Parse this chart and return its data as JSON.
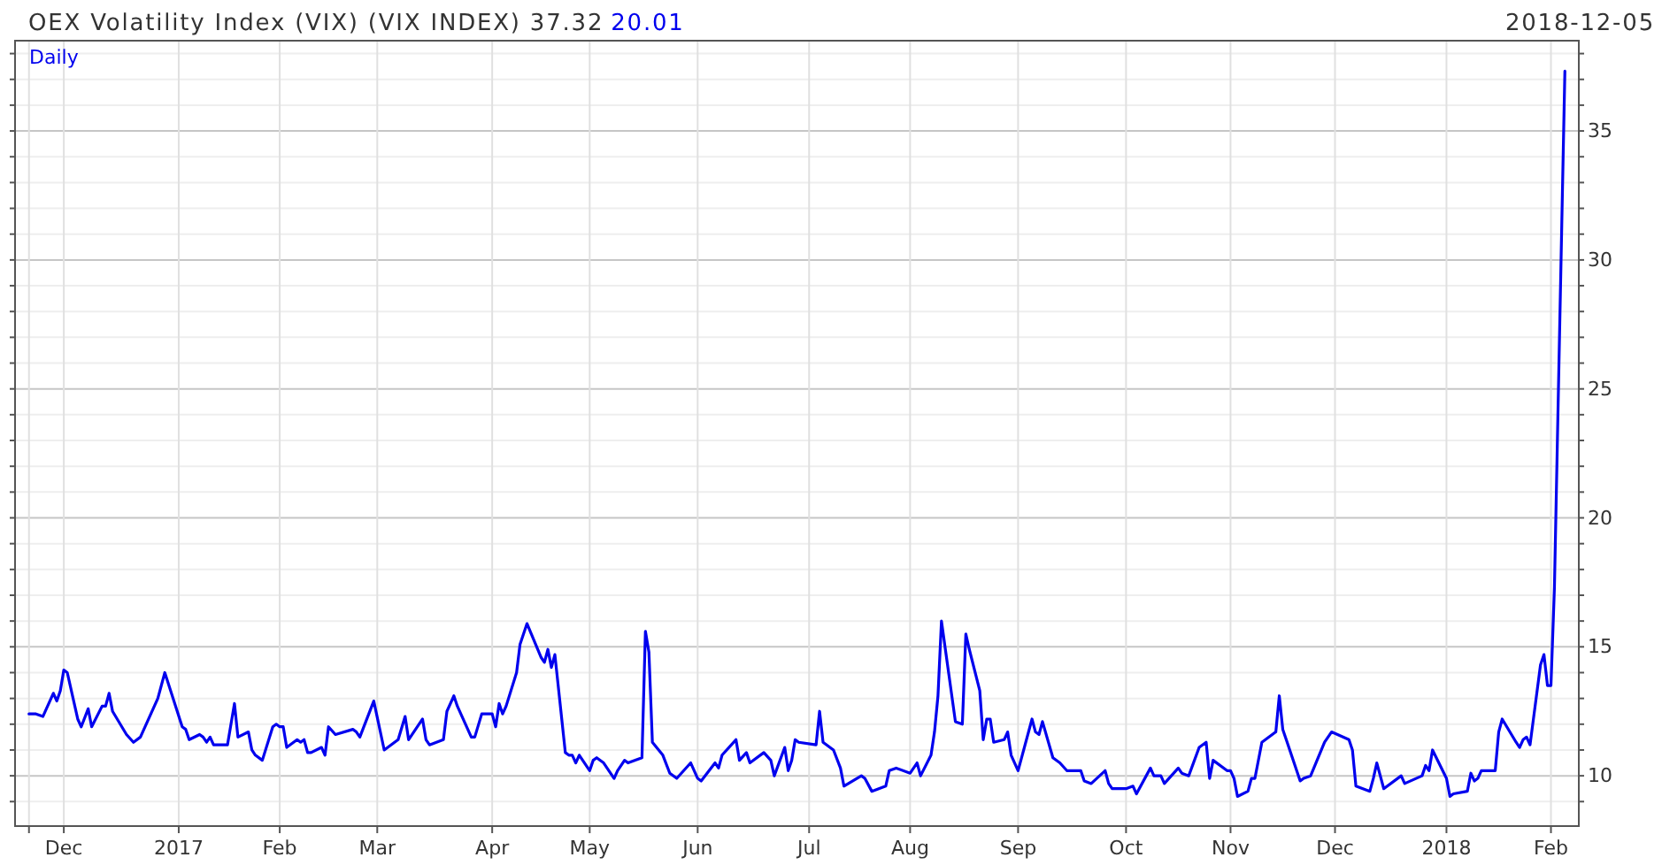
{
  "chart_data": {
    "type": "line",
    "title": "OEX Volatility Index (VIX) (VIX INDEX) 37.32",
    "subtitle": "20.01",
    "annotations": [
      "2018-12-05"
    ],
    "xlim": [
      "2016-11-17",
      "2018-02-09"
    ],
    "xticks": [
      {
        "value": "2016-11-21",
        "label": null
      },
      {
        "value": "2016-12-01",
        "label": "Dec"
      },
      {
        "value": "2017-01-03",
        "label": "2017"
      },
      {
        "value": "2017-02-01",
        "label": "Feb"
      },
      {
        "value": "2017-03-01",
        "label": "Mar"
      },
      {
        "value": "2017-04-03",
        "label": "Apr"
      },
      {
        "value": "2017-05-01",
        "label": "May"
      },
      {
        "value": "2017-06-01",
        "label": "Jun"
      },
      {
        "value": "2017-07-03",
        "label": "Jul"
      },
      {
        "value": "2017-08-01",
        "label": "Aug"
      },
      {
        "value": "2017-09-01",
        "label": "Sep"
      },
      {
        "value": "2017-10-02",
        "label": "Oct"
      },
      {
        "value": "2017-11-01",
        "label": "Nov"
      },
      {
        "value": "2017-12-01",
        "label": "Dec"
      },
      {
        "value": "2018-01-02",
        "label": "2018"
      },
      {
        "value": "2018-02-01",
        "label": "Feb"
      }
    ],
    "ylim": [
      8.05,
      38.5
    ],
    "yticks": [
      {
        "value": 9,
        "label": null
      },
      10,
      {
        "value": 11,
        "label": null
      },
      {
        "value": 12,
        "label": null
      },
      {
        "value": 13,
        "label": null
      },
      {
        "value": 14,
        "label": null
      },
      15,
      {
        "value": 16,
        "label": null
      },
      {
        "value": 17,
        "label": null
      },
      {
        "value": 18,
        "label": null
      },
      {
        "value": 19,
        "label": null
      },
      20,
      {
        "value": 21,
        "label": null
      },
      {
        "value": 22,
        "label": null
      },
      {
        "value": 23,
        "label": null
      },
      {
        "value": 24,
        "label": null
      },
      25,
      {
        "value": 26,
        "label": null
      },
      {
        "value": 27,
        "label": null
      },
      {
        "value": 28,
        "label": null
      },
      {
        "value": 29,
        "label": null
      },
      30,
      {
        "value": 31,
        "label": null
      },
      {
        "value": 32,
        "label": null
      },
      {
        "value": 33,
        "label": null
      },
      {
        "value": 34,
        "label": null
      },
      35,
      {
        "value": 36,
        "label": null
      },
      {
        "value": 37,
        "label": null
      },
      {
        "value": 38,
        "label": null
      }
    ],
    "grid": true,
    "legend": "top left",
    "series": [
      {
        "name": "Daily",
        "color": "#0000ee",
        "x": [
          "2016-11-21",
          "2016-11-23",
          "2016-11-25",
          "2016-11-28",
          "2016-11-29",
          "2016-11-30",
          "2016-12-01",
          "2016-12-02",
          "2016-12-05",
          "2016-12-06",
          "2016-12-08",
          "2016-12-09",
          "2016-12-12",
          "2016-12-13",
          "2016-12-14",
          "2016-12-15",
          "2016-12-19",
          "2016-12-21",
          "2016-12-23",
          "2016-12-28",
          "2016-12-30",
          "2017-01-04",
          "2017-01-05",
          "2017-01-06",
          "2017-01-09",
          "2017-01-10",
          "2017-01-11",
          "2017-01-12",
          "2017-01-13",
          "2017-01-17",
          "2017-01-18",
          "2017-01-19",
          "2017-01-20",
          "2017-01-23",
          "2017-01-24",
          "2017-01-25",
          "2017-01-27",
          "2017-01-30",
          "2017-01-31",
          "2017-02-01",
          "2017-02-02",
          "2017-02-03",
          "2017-02-06",
          "2017-02-07",
          "2017-02-08",
          "2017-02-09",
          "2017-02-10",
          "2017-02-13",
          "2017-02-14",
          "2017-02-15",
          "2017-02-17",
          "2017-02-22",
          "2017-02-23",
          "2017-02-24",
          "2017-02-28",
          "2017-03-03",
          "2017-03-07",
          "2017-03-09",
          "2017-03-10",
          "2017-03-14",
          "2017-03-15",
          "2017-03-16",
          "2017-03-20",
          "2017-03-21",
          "2017-03-23",
          "2017-03-24",
          "2017-03-28",
          "2017-03-29",
          "2017-03-31",
          "2017-04-03",
          "2017-04-04",
          "2017-04-05",
          "2017-04-06",
          "2017-04-07",
          "2017-04-10",
          "2017-04-11",
          "2017-04-13",
          "2017-04-17",
          "2017-04-18",
          "2017-04-19",
          "2017-04-20",
          "2017-04-21",
          "2017-04-24",
          "2017-04-25",
          "2017-04-26",
          "2017-04-27",
          "2017-04-28",
          "2017-05-01",
          "2017-05-02",
          "2017-05-03",
          "2017-05-05",
          "2017-05-08",
          "2017-05-09",
          "2017-05-11",
          "2017-05-12",
          "2017-05-16",
          "2017-05-17",
          "2017-05-18",
          "2017-05-19",
          "2017-05-22",
          "2017-05-24",
          "2017-05-26",
          "2017-05-30",
          "2017-06-01",
          "2017-06-02",
          "2017-06-06",
          "2017-06-07",
          "2017-06-08",
          "2017-06-12",
          "2017-06-13",
          "2017-06-15",
          "2017-06-16",
          "2017-06-20",
          "2017-06-22",
          "2017-06-23",
          "2017-06-26",
          "2017-06-27",
          "2017-06-28",
          "2017-06-29",
          "2017-06-30",
          "2017-07-05",
          "2017-07-06",
          "2017-07-07",
          "2017-07-10",
          "2017-07-12",
          "2017-07-13",
          "2017-07-18",
          "2017-07-19",
          "2017-07-21",
          "2017-07-25",
          "2017-07-26",
          "2017-07-28",
          "2017-08-01",
          "2017-08-03",
          "2017-08-04",
          "2017-08-07",
          "2017-08-08",
          "2017-08-09",
          "2017-08-10",
          "2017-08-14",
          "2017-08-16",
          "2017-08-17",
          "2017-08-18",
          "2017-08-21",
          "2017-08-22",
          "2017-08-23",
          "2017-08-24",
          "2017-08-25",
          "2017-08-28",
          "2017-08-29",
          "2017-08-30",
          "2017-09-01",
          "2017-09-05",
          "2017-09-06",
          "2017-09-07",
          "2017-09-08",
          "2017-09-11",
          "2017-09-13",
          "2017-09-15",
          "2017-09-19",
          "2017-09-20",
          "2017-09-22",
          "2017-09-26",
          "2017-09-27",
          "2017-09-28",
          "2017-10-02",
          "2017-10-04",
          "2017-10-05",
          "2017-10-09",
          "2017-10-10",
          "2017-10-12",
          "2017-10-13",
          "2017-10-17",
          "2017-10-18",
          "2017-10-20",
          "2017-10-23",
          "2017-10-25",
          "2017-10-26",
          "2017-10-27",
          "2017-10-31",
          "2017-11-01",
          "2017-11-02",
          "2017-11-03",
          "2017-11-06",
          "2017-11-07",
          "2017-11-08",
          "2017-11-10",
          "2017-11-14",
          "2017-11-15",
          "2017-11-16",
          "2017-11-17",
          "2017-11-21",
          "2017-11-22",
          "2017-11-24",
          "2017-11-28",
          "2017-11-30",
          "2017-12-05",
          "2017-12-06",
          "2017-12-07",
          "2017-12-11",
          "2017-12-12",
          "2017-12-13",
          "2017-12-15",
          "2017-12-20",
          "2017-12-21",
          "2017-12-26",
          "2017-12-27",
          "2017-12-28",
          "2017-12-29",
          "2018-01-02",
          "2018-01-03",
          "2018-01-04",
          "2018-01-08",
          "2018-01-09",
          "2018-01-10",
          "2018-01-11",
          "2018-01-12",
          "2018-01-16",
          "2018-01-17",
          "2018-01-18",
          "2018-01-22",
          "2018-01-23",
          "2018-01-24",
          "2018-01-25",
          "2018-01-26",
          "2018-01-29",
          "2018-01-30",
          "2018-01-31",
          "2018-02-01",
          "2018-02-02",
          "2018-02-05"
        ],
        "values": [
          12.4,
          12.4,
          12.3,
          13.2,
          12.9,
          13.3,
          14.1,
          14.0,
          12.2,
          11.9,
          12.6,
          11.9,
          12.7,
          12.7,
          13.2,
          12.5,
          11.6,
          11.3,
          11.5,
          13.0,
          14.0,
          11.9,
          11.8,
          11.4,
          11.6,
          11.5,
          11.3,
          11.5,
          11.2,
          11.2,
          12.0,
          12.8,
          11.5,
          11.7,
          11.0,
          10.8,
          10.6,
          11.9,
          12.0,
          11.9,
          11.9,
          11.1,
          11.4,
          11.3,
          11.4,
          10.9,
          10.9,
          11.1,
          10.8,
          11.9,
          11.6,
          11.8,
          11.7,
          11.5,
          12.9,
          11.0,
          11.4,
          12.3,
          11.4,
          12.2,
          11.4,
          11.2,
          11.4,
          12.5,
          13.1,
          12.7,
          11.5,
          11.5,
          12.4,
          12.4,
          11.9,
          12.8,
          12.4,
          12.7,
          14.0,
          15.1,
          15.9,
          14.6,
          14.4,
          14.9,
          14.2,
          14.7,
          10.9,
          10.8,
          10.8,
          10.5,
          10.8,
          10.2,
          10.6,
          10.7,
          10.5,
          9.9,
          10.2,
          10.6,
          10.5,
          10.7,
          15.6,
          14.8,
          11.3,
          10.8,
          10.1,
          9.9,
          10.5,
          9.9,
          9.8,
          10.5,
          10.3,
          10.8,
          11.4,
          10.6,
          10.9,
          10.5,
          10.9,
          10.6,
          10.0,
          11.1,
          10.2,
          10.6,
          11.4,
          11.3,
          11.2,
          12.5,
          11.3,
          11.0,
          10.3,
          9.6,
          10.0,
          9.9,
          9.4,
          9.6,
          10.2,
          10.3,
          10.1,
          10.5,
          10.0,
          10.8,
          11.7,
          13.1,
          16.0,
          12.1,
          12.0,
          15.5,
          14.9,
          13.3,
          11.4,
          12.2,
          12.2,
          11.3,
          11.4,
          11.7,
          10.8,
          10.2,
          12.2,
          11.7,
          11.6,
          12.1,
          10.7,
          10.5,
          10.2,
          10.2,
          9.8,
          9.7,
          10.2,
          9.7,
          9.5,
          9.5,
          9.6,
          9.3,
          10.3,
          10.0,
          10.0,
          9.7,
          10.3,
          10.1,
          10.0,
          11.1,
          11.3,
          9.9,
          10.6,
          10.2,
          10.2,
          9.9,
          9.2,
          9.4,
          9.9,
          9.9,
          11.3,
          11.7,
          13.1,
          11.8,
          11.4,
          9.8,
          9.9,
          10.0,
          11.3,
          11.7,
          11.4,
          11.0,
          9.6,
          9.4,
          9.9,
          10.5,
          9.5,
          10.0,
          9.7,
          10.0,
          10.4,
          10.2,
          11.0,
          9.9,
          9.2,
          9.3,
          9.4,
          10.1,
          9.8,
          9.9,
          10.2,
          10.2,
          11.7,
          12.2,
          11.3,
          11.1,
          11.4,
          11.5,
          11.2,
          14.3,
          14.7,
          13.5,
          13.5,
          17.3,
          37.32
        ]
      }
    ]
  }
}
